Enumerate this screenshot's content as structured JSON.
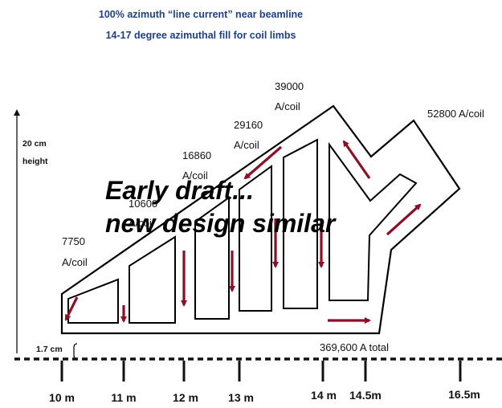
{
  "title": {
    "line1": "100% azimuth “line current” near beamline",
    "line2": "14-17 degree azimuthal fill for coil limbs"
  },
  "height_label": {
    "line1": "20 cm",
    "line2": "height"
  },
  "offset_label": "1.7 cm",
  "coil_labels": [
    {
      "current": "7750",
      "unit": "A/coil"
    },
    {
      "current": "10600",
      "unit": "A/coil"
    },
    {
      "current": "16860",
      "unit": "A/coil"
    },
    {
      "current": "29160",
      "unit": "A/coil"
    },
    {
      "current": "39000",
      "unit": "A/coil"
    },
    {
      "current": "52800 A/coil",
      "unit": ""
    }
  ],
  "total_label": "369,600 A total",
  "axis_ticks": [
    "10 m",
    "11 m",
    "12 m",
    "13 m",
    "14 m",
    "14.5m",
    "16.5m"
  ],
  "overlay": {
    "line1": "Early draft...",
    "line2": "new design similar"
  },
  "colors": {
    "title": "#1f3f86",
    "arrow": "#8b1026",
    "outline": "#000000"
  }
}
